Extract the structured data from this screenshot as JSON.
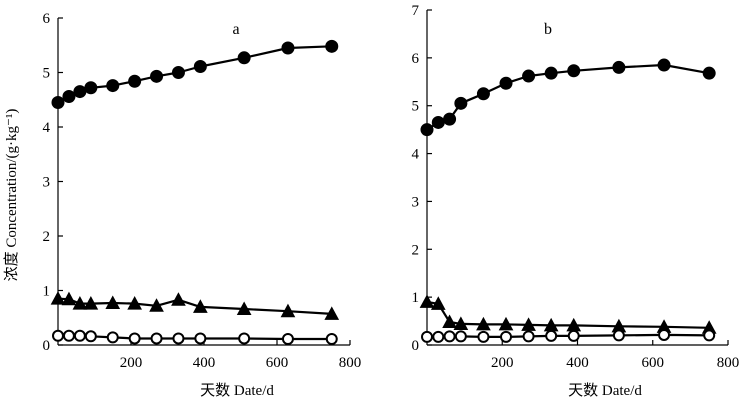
{
  "figure": {
    "ylabel": "浓度 Concentration/(g·kg⁻¹)"
  },
  "chart_data": [
    {
      "type": "line",
      "panel_label": "a",
      "xlabel": "天数 Date/d",
      "xlim": [
        0,
        800
      ],
      "ylim": [
        0,
        6
      ],
      "xticks": [
        200,
        400,
        600,
        800
      ],
      "yticks": [
        0,
        1,
        2,
        3,
        4,
        5,
        6
      ],
      "series": [
        {
          "name": "filled-circle",
          "marker": "circle-filled",
          "x": [
            0,
            30,
            60,
            90,
            150,
            210,
            270,
            330,
            390,
            510,
            630,
            750
          ],
          "y": [
            4.45,
            4.56,
            4.65,
            4.72,
            4.76,
            4.84,
            4.93,
            5.0,
            5.11,
            5.27,
            5.45,
            5.48
          ]
        },
        {
          "name": "filled-triangle",
          "marker": "triangle-filled",
          "x": [
            0,
            30,
            60,
            90,
            150,
            210,
            270,
            330,
            390,
            510,
            630,
            750
          ],
          "y": [
            0.85,
            0.84,
            0.76,
            0.76,
            0.77,
            0.76,
            0.72,
            0.83,
            0.7,
            0.66,
            0.62,
            0.57
          ]
        },
        {
          "name": "open-circle",
          "marker": "circle-open",
          "x": [
            0,
            30,
            60,
            90,
            150,
            210,
            270,
            330,
            390,
            510,
            630,
            750
          ],
          "y": [
            0.17,
            0.17,
            0.17,
            0.16,
            0.14,
            0.12,
            0.12,
            0.12,
            0.12,
            0.12,
            0.11,
            0.11
          ]
        }
      ]
    },
    {
      "type": "line",
      "panel_label": "b",
      "xlabel": "天数 Date/d",
      "xlim": [
        0,
        800
      ],
      "ylim": [
        0,
        7
      ],
      "xticks": [
        200,
        400,
        600,
        800
      ],
      "yticks": [
        0,
        1,
        2,
        3,
        4,
        5,
        6,
        7
      ],
      "series": [
        {
          "name": "filled-circle",
          "marker": "circle-filled",
          "x": [
            0,
            30,
            60,
            90,
            150,
            210,
            270,
            330,
            390,
            510,
            630,
            750
          ],
          "y": [
            4.5,
            4.65,
            4.72,
            5.05,
            5.25,
            5.47,
            5.62,
            5.68,
            5.73,
            5.8,
            5.85,
            5.68
          ]
        },
        {
          "name": "filled-triangle",
          "marker": "triangle-filled",
          "x": [
            0,
            30,
            60,
            90,
            150,
            210,
            270,
            330,
            390,
            510,
            630,
            750
          ],
          "y": [
            0.9,
            0.86,
            0.48,
            0.44,
            0.43,
            0.43,
            0.42,
            0.41,
            0.41,
            0.39,
            0.38,
            0.36
          ]
        },
        {
          "name": "open-circle",
          "marker": "circle-open",
          "x": [
            0,
            30,
            60,
            90,
            150,
            210,
            270,
            330,
            390,
            510,
            630,
            750
          ],
          "y": [
            0.17,
            0.17,
            0.18,
            0.18,
            0.17,
            0.17,
            0.18,
            0.19,
            0.19,
            0.2,
            0.21,
            0.2
          ]
        }
      ]
    }
  ]
}
